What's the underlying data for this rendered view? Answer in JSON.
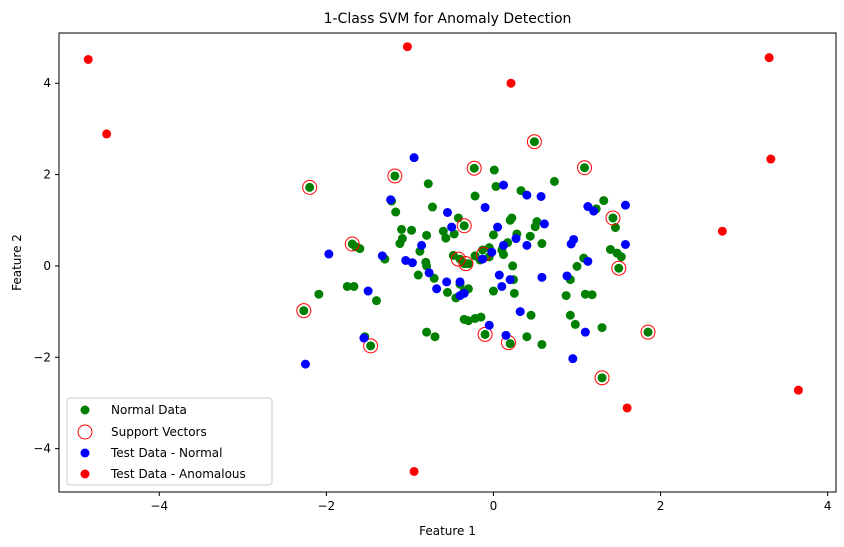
{
  "chart_data": {
    "type": "scatter",
    "title": "1-Class SVM for Anomaly Detection",
    "xlabel": "Feature 1",
    "ylabel": "Feature 2",
    "xlim": [
      -5.2,
      4.1
    ],
    "ylim": [
      -4.95,
      5.1
    ],
    "xticks": [
      -4,
      -2,
      0,
      2,
      4
    ],
    "yticks": [
      -4,
      -2,
      0,
      2,
      4
    ],
    "grid": false,
    "legend_position": "lower-left",
    "series": [
      {
        "name": "Normal Data",
        "color": "#008000",
        "marker": "filled-circle",
        "points": [
          [
            -2.2,
            1.72
          ],
          [
            -1.18,
            1.97
          ],
          [
            -0.23,
            2.14
          ],
          [
            0.01,
            2.1
          ],
          [
            0.49,
            2.72
          ],
          [
            1.09,
            2.15
          ],
          [
            -0.78,
            1.8
          ],
          [
            -1.22,
            1.42
          ],
          [
            -1.17,
            1.18
          ],
          [
            -0.73,
            1.29
          ],
          [
            -0.22,
            1.53
          ],
          [
            0.03,
            1.74
          ],
          [
            0.33,
            1.65
          ],
          [
            0.73,
            1.85
          ],
          [
            1.23,
            1.25
          ],
          [
            1.32,
            1.43
          ],
          [
            1.43,
            1.05
          ],
          [
            1.46,
            0.84
          ],
          [
            -1.1,
            0.8
          ],
          [
            -0.98,
            0.78
          ],
          [
            -1.09,
            0.6
          ],
          [
            -1.12,
            0.49
          ],
          [
            -0.8,
            0.67
          ],
          [
            -0.6,
            0.76
          ],
          [
            -0.57,
            0.61
          ],
          [
            -0.47,
            0.7
          ],
          [
            -0.42,
            1.05
          ],
          [
            -0.35,
            0.88
          ],
          [
            0.0,
            0.68
          ],
          [
            0.17,
            0.51
          ],
          [
            0.2,
            1.0
          ],
          [
            0.22,
            1.05
          ],
          [
            0.28,
            0.7
          ],
          [
            0.44,
            0.65
          ],
          [
            0.5,
            0.86
          ],
          [
            0.52,
            0.97
          ],
          [
            0.58,
            0.49
          ],
          [
            -1.69,
            0.48
          ],
          [
            -1.65,
            0.42
          ],
          [
            -1.6,
            0.38
          ],
          [
            -1.3,
            0.15
          ],
          [
            -0.8,
            0.0
          ],
          [
            -0.88,
            0.32
          ],
          [
            -0.81,
            0.08
          ],
          [
            -0.9,
            -0.2
          ],
          [
            -0.71,
            -0.27
          ],
          [
            -0.48,
            0.23
          ],
          [
            -0.4,
            0.15
          ],
          [
            -0.35,
            0.05
          ],
          [
            -0.3,
            0.05
          ],
          [
            -0.22,
            0.22
          ],
          [
            -0.16,
            0.13
          ],
          [
            -0.13,
            0.35
          ],
          [
            -0.05,
            0.4
          ],
          [
            -0.05,
            0.2
          ],
          [
            0.1,
            0.35
          ],
          [
            0.12,
            0.25
          ],
          [
            0.23,
            0.0
          ],
          [
            0.24,
            -0.3
          ],
          [
            0.25,
            -0.6
          ],
          [
            1.0,
            -0.01
          ],
          [
            1.08,
            0.17
          ],
          [
            1.1,
            -0.62
          ],
          [
            1.18,
            -0.63
          ],
          [
            1.4,
            0.36
          ],
          [
            1.48,
            0.28
          ],
          [
            1.53,
            0.2
          ],
          [
            1.5,
            -0.05
          ],
          [
            -2.27,
            -0.98
          ],
          [
            -2.09,
            -0.62
          ],
          [
            -1.75,
            -0.45
          ],
          [
            -1.67,
            -0.45
          ],
          [
            -1.54,
            -1.55
          ],
          [
            -1.47,
            -1.75
          ],
          [
            -1.4,
            -0.76
          ],
          [
            -0.8,
            -1.45
          ],
          [
            -0.7,
            -1.55
          ],
          [
            -0.55,
            -0.58
          ],
          [
            -0.45,
            -0.7
          ],
          [
            -0.35,
            -0.55
          ],
          [
            -0.4,
            -0.4
          ],
          [
            -0.3,
            -0.5
          ],
          [
            -0.35,
            -1.17
          ],
          [
            -0.3,
            -1.2
          ],
          [
            -0.22,
            -1.15
          ],
          [
            -0.15,
            -1.12
          ],
          [
            -0.1,
            -1.5
          ],
          [
            0.0,
            -0.55
          ],
          [
            0.2,
            -1.7
          ],
          [
            0.4,
            -1.55
          ],
          [
            0.45,
            -1.08
          ],
          [
            0.58,
            -1.72
          ],
          [
            0.87,
            -0.65
          ],
          [
            0.92,
            -1.08
          ],
          [
            0.92,
            -0.3
          ],
          [
            0.98,
            -1.28
          ],
          [
            1.3,
            -1.35
          ],
          [
            1.3,
            -2.45
          ],
          [
            1.85,
            -1.45
          ]
        ]
      },
      {
        "name": "Support Vectors",
        "color": "#ff0000",
        "marker": "open-circle",
        "points": [
          [
            -2.2,
            1.72
          ],
          [
            -1.18,
            1.97
          ],
          [
            -0.23,
            2.14
          ],
          [
            0.49,
            2.72
          ],
          [
            1.09,
            2.15
          ],
          [
            1.43,
            1.05
          ],
          [
            -0.35,
            0.88
          ],
          [
            -1.69,
            0.48
          ],
          [
            -0.42,
            0.15
          ],
          [
            -0.33,
            0.05
          ],
          [
            -0.12,
            0.25
          ],
          [
            1.5,
            -0.05
          ],
          [
            -2.27,
            -0.98
          ],
          [
            -1.47,
            -1.75
          ],
          [
            -0.1,
            -1.5
          ],
          [
            0.18,
            -1.68
          ],
          [
            1.3,
            -2.45
          ],
          [
            1.85,
            -1.45
          ]
        ]
      },
      {
        "name": "Test Data - Normal",
        "color": "#0000ff",
        "marker": "filled-circle",
        "points": [
          [
            -0.95,
            2.37
          ],
          [
            -1.23,
            1.45
          ],
          [
            -0.55,
            1.17
          ],
          [
            -0.1,
            1.28
          ],
          [
            0.12,
            1.77
          ],
          [
            0.4,
            1.55
          ],
          [
            0.57,
            1.52
          ],
          [
            1.13,
            1.3
          ],
          [
            1.2,
            1.2
          ],
          [
            1.58,
            1.33
          ],
          [
            -0.5,
            0.85
          ],
          [
            0.05,
            0.85
          ],
          [
            0.61,
            0.92
          ],
          [
            0.96,
            0.58
          ],
          [
            0.93,
            0.48
          ],
          [
            1.58,
            0.47
          ],
          [
            1.13,
            0.1
          ],
          [
            -1.97,
            0.26
          ],
          [
            -1.33,
            0.22
          ],
          [
            -1.05,
            0.12
          ],
          [
            -0.97,
            0.07
          ],
          [
            -0.86,
            0.45
          ],
          [
            -0.77,
            -0.15
          ],
          [
            -0.68,
            -0.5
          ],
          [
            -0.56,
            -0.35
          ],
          [
            -0.4,
            -0.35
          ],
          [
            -0.35,
            -0.6
          ],
          [
            -0.4,
            -0.65
          ],
          [
            -0.13,
            0.15
          ],
          [
            -0.02,
            0.3
          ],
          [
            0.12,
            0.45
          ],
          [
            0.07,
            -0.2
          ],
          [
            0.1,
            -0.45
          ],
          [
            0.2,
            -0.3
          ],
          [
            0.27,
            0.6
          ],
          [
            0.4,
            0.45
          ],
          [
            0.58,
            -0.25
          ],
          [
            0.88,
            -0.22
          ],
          [
            -1.5,
            -0.55
          ],
          [
            -2.25,
            -2.15
          ],
          [
            -1.55,
            -1.58
          ],
          [
            -0.05,
            -1.3
          ],
          [
            0.15,
            -1.52
          ],
          [
            0.32,
            -1.0
          ],
          [
            0.95,
            -2.03
          ],
          [
            1.1,
            -1.45
          ]
        ]
      },
      {
        "name": "Test Data - Anomalous",
        "color": "#ff0000",
        "marker": "filled-circle",
        "points": [
          [
            -4.85,
            4.52
          ],
          [
            -4.63,
            2.89
          ],
          [
            -1.03,
            4.8
          ],
          [
            0.21,
            4.0
          ],
          [
            3.3,
            4.56
          ],
          [
            3.32,
            2.34
          ],
          [
            2.74,
            0.76
          ],
          [
            1.6,
            -3.11
          ],
          [
            3.65,
            -2.72
          ],
          [
            -0.95,
            -4.5
          ]
        ]
      }
    ]
  }
}
